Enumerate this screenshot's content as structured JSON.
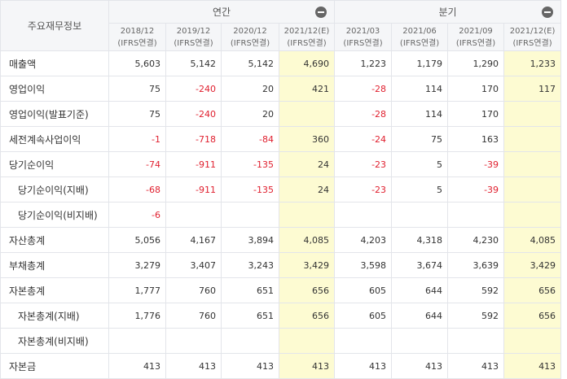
{
  "table": {
    "corner": "주요재무정보",
    "groups": [
      "연간",
      "분기"
    ],
    "columns": [
      {
        "period": "2018/12",
        "basis": "(IFRS연결)"
      },
      {
        "period": "2019/12",
        "basis": "(IFRS연결)"
      },
      {
        "period": "2020/12",
        "basis": "(IFRS연결)"
      },
      {
        "period": "2021/12(E)",
        "basis": "(IFRS연결)"
      },
      {
        "period": "2021/03",
        "basis": "(IFRS연결)"
      },
      {
        "period": "2021/06",
        "basis": "(IFRS연결)"
      },
      {
        "period": "2021/09",
        "basis": "(IFRS연결)"
      },
      {
        "period": "2021/12(E)",
        "basis": "(IFRS연결)"
      }
    ],
    "rows": [
      {
        "label": "매출액",
        "cells": [
          "5,603",
          "5,142",
          "5,142",
          "4,690",
          "1,223",
          "1,179",
          "1,290",
          "1,233"
        ]
      },
      {
        "label": "영업이익",
        "cells": [
          "75",
          "-240",
          "20",
          "421",
          "-28",
          "114",
          "170",
          "117"
        ]
      },
      {
        "label": "영업이익(발표기준)",
        "cells": [
          "75",
          "-240",
          "20",
          null,
          "-28",
          "114",
          "170",
          null
        ]
      },
      {
        "label": "세전계속사업이익",
        "cells": [
          "-1",
          "-718",
          "-84",
          "360",
          "-24",
          "75",
          "163",
          null
        ]
      },
      {
        "label": "당기순이익",
        "cells": [
          "-74",
          "-911",
          "-135",
          "24",
          "-23",
          "5",
          "-39",
          null
        ]
      },
      {
        "label": "당기순이익(지배)",
        "cells": [
          "-68",
          "-911",
          "-135",
          "24",
          "-23",
          "5",
          "-39",
          null
        ]
      },
      {
        "label": "당기순이익(비지배)",
        "cells": [
          "-6",
          null,
          null,
          null,
          null,
          null,
          null,
          null
        ]
      },
      {
        "label": "자산총계",
        "cells": [
          "5,056",
          "4,167",
          "3,894",
          "4,085",
          "4,203",
          "4,318",
          "4,230",
          "4,085"
        ]
      },
      {
        "label": "부채총계",
        "cells": [
          "3,279",
          "3,407",
          "3,243",
          "3,429",
          "3,598",
          "3,674",
          "3,639",
          "3,429"
        ]
      },
      {
        "label": "자본총계",
        "cells": [
          "1,777",
          "760",
          "651",
          "656",
          "605",
          "644",
          "592",
          "656"
        ]
      },
      {
        "label": "자본총계(지배)",
        "cells": [
          "1,776",
          "760",
          "651",
          "656",
          "605",
          "644",
          "592",
          "656"
        ]
      },
      {
        "label": "자본총계(비지배)",
        "cells": [
          null,
          null,
          null,
          null,
          null,
          null,
          null,
          null
        ]
      },
      {
        "label": "자본금",
        "cells": [
          "413",
          "413",
          "413",
          "413",
          "413",
          "413",
          "413",
          "413"
        ]
      }
    ]
  }
}
